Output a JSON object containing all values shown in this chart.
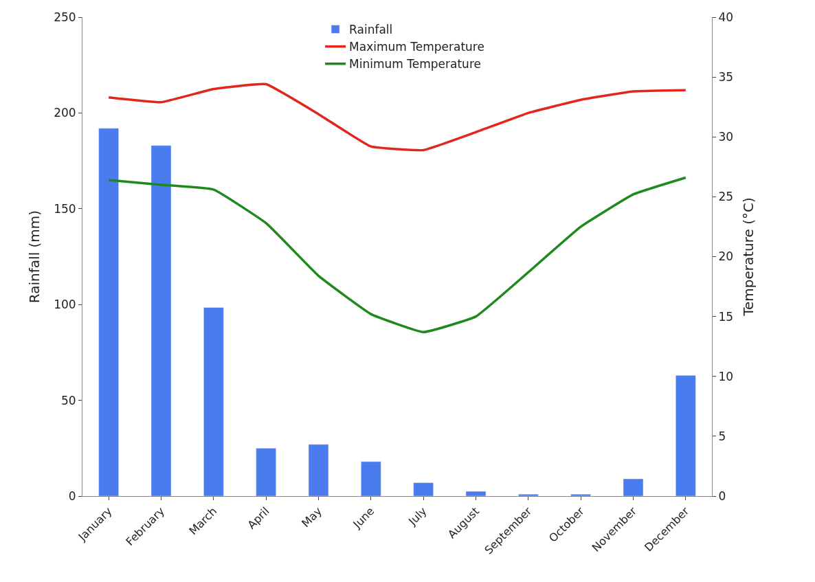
{
  "chart_data": {
    "type": "bar",
    "categories": [
      "January",
      "February",
      "March",
      "April",
      "May",
      "June",
      "July",
      "August",
      "September",
      "October",
      "November",
      "December"
    ],
    "ylabel": "Rainfall (mm)",
    "y2label": "Temperature (°C)",
    "ylim": [
      0,
      250
    ],
    "yticks": [
      0,
      50,
      100,
      150,
      200,
      250
    ],
    "y2lim": [
      0,
      40
    ],
    "y2ticks": [
      0,
      5,
      10,
      15,
      20,
      25,
      30,
      35,
      40
    ],
    "legend": "top",
    "marker": "none",
    "line_style": "solid",
    "series": [
      {
        "name": "Rainfall",
        "color": "#4a7cf0",
        "values": [
          192,
          183,
          98.5,
          25,
          27,
          18,
          7,
          2.5,
          1,
          1,
          9,
          63
        ]
      },
      {
        "name": "Maximum Temperature",
        "type": "line",
        "axis": "y2",
        "color": "#e3261c",
        "values": [
          33.3,
          32.9,
          34.0,
          34.4,
          31.9,
          29.2,
          28.9,
          30.4,
          32.0,
          33.1,
          33.8,
          33.9
        ]
      },
      {
        "name": "Minimum Temperature",
        "type": "line",
        "axis": "y2",
        "color": "#1e8a1e",
        "values": [
          26.4,
          26.0,
          25.6,
          22.8,
          18.4,
          15.2,
          13.7,
          15.0,
          18.7,
          22.5,
          25.2,
          26.6
        ]
      }
    ]
  }
}
